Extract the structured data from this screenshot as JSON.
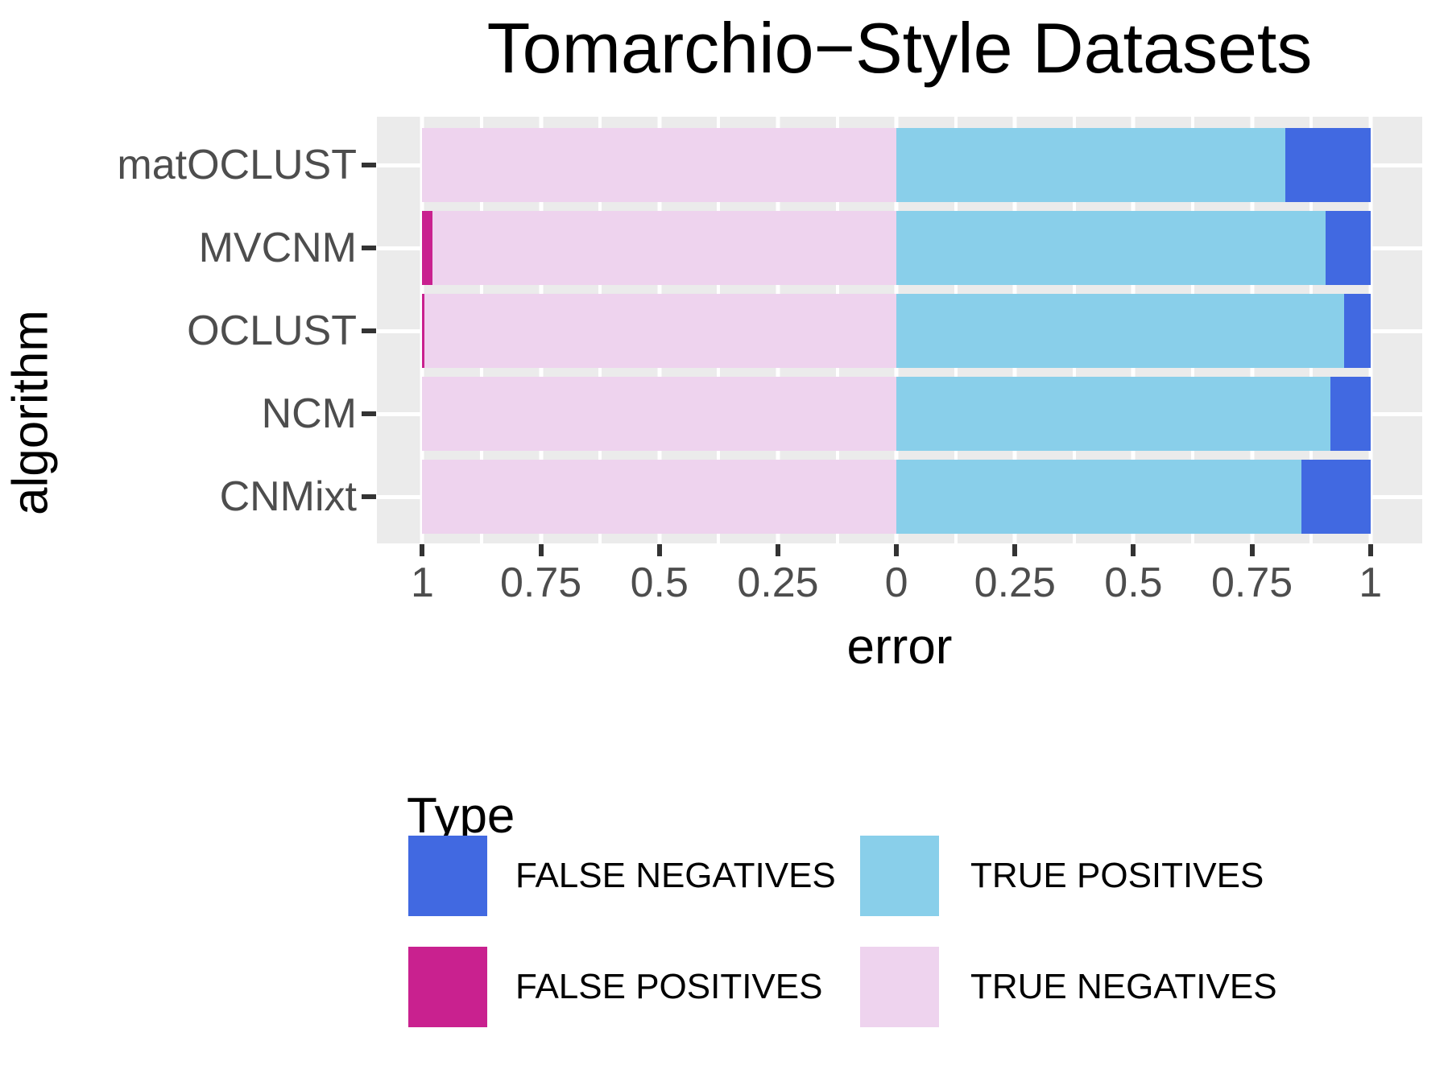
{
  "chart_data": {
    "type": "bar",
    "variant": "diverging-stacked-horizontal",
    "title": "Tomarchio−Style Datasets",
    "xlabel": "error",
    "ylabel": "algorithm",
    "categories": [
      "matOCLUST",
      "MVCNM",
      "OCLUST",
      "NCM",
      "CNMixt"
    ],
    "series": [
      {
        "name": "TRUE NEGATIVES",
        "side": "left",
        "color": "#EED3EE",
        "values": [
          1.0,
          0.978,
          0.995,
          1.0,
          1.0
        ]
      },
      {
        "name": "FALSE POSITIVES",
        "side": "left",
        "color": "#C9218F",
        "values": [
          0.0,
          0.022,
          0.005,
          0.0,
          0.0
        ]
      },
      {
        "name": "TRUE POSITIVES",
        "side": "right",
        "color": "#89CFEA",
        "values": [
          0.82,
          0.905,
          0.945,
          0.915,
          0.855
        ]
      },
      {
        "name": "FALSE NEGATIVES",
        "side": "right",
        "color": "#4169E1",
        "values": [
          0.18,
          0.095,
          0.055,
          0.085,
          0.145
        ]
      }
    ],
    "x_axis": {
      "tick_values": [
        -1,
        -0.75,
        -0.5,
        -0.25,
        0,
        0.25,
        0.5,
        0.75,
        1
      ],
      "tick_labels": [
        "1",
        "0.75",
        "0.5",
        "0.25",
        "0",
        "0.25",
        "0.5",
        "0.75",
        "1"
      ],
      "minor_gridlines": [
        -0.875,
        -0.625,
        -0.375,
        -0.125,
        0.125,
        0.375,
        0.625,
        0.875
      ],
      "range_note": "mirrored axis, 0 at center, 1 at both ends"
    },
    "layout": {
      "grid": "on",
      "panel_background": "#EBEBEB",
      "gridline_color": "#ffffff",
      "tick_mark_color": "#333333",
      "tick_label_color": "#4D4D4D",
      "legend_position": "bottom"
    }
  },
  "legend": {
    "title": "Type",
    "entries": [
      {
        "label": "FALSE NEGATIVES",
        "color": "#4169E1"
      },
      {
        "label": "TRUE POSITIVES",
        "color": "#89CFEA"
      },
      {
        "label": "FALSE POSITIVES",
        "color": "#C9218F"
      },
      {
        "label": "TRUE NEGATIVES",
        "color": "#EED3EE"
      }
    ]
  }
}
